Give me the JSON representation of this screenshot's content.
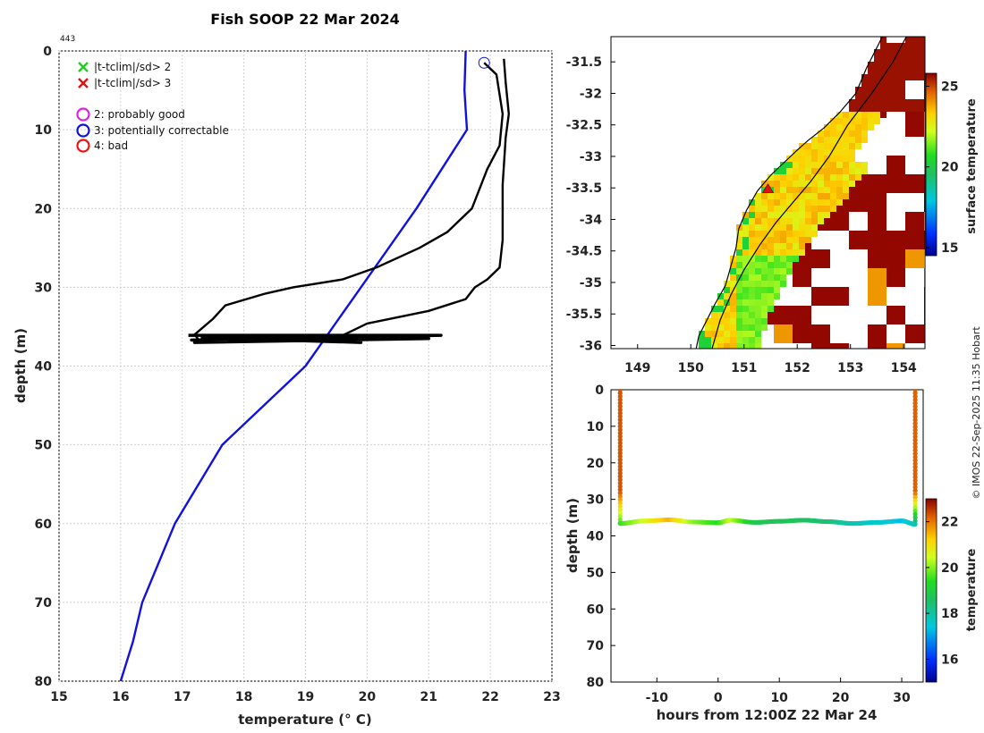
{
  "page": {
    "title": "Fish SOOP 22 Mar 2024",
    "profile_id": "443",
    "credit": "© IMOS 22-Sep-2025 11:35 Hobart"
  },
  "chart_data": [
    {
      "type": "line",
      "name": "temperature-profile",
      "xlabel": "temperature (° C)",
      "ylabel": "depth (m)",
      "xlim": [
        15,
        23
      ],
      "ylim": [
        0,
        80
      ],
      "ylim_reversed": true,
      "xticks": [
        "15",
        "16",
        "17",
        "18",
        "19",
        "20",
        "21",
        "22",
        "23"
      ],
      "yticks": [
        "0",
        "10",
        "20",
        "30",
        "40",
        "50",
        "60",
        "70",
        "80"
      ],
      "grid": true,
      "legend": [
        {
          "label": "|t-tclim|/sd> 2",
          "marker": "x",
          "color": "#22cc22"
        },
        {
          "label": "|t-tclim|/sd> 3",
          "marker": "x",
          "color": "#dd1111"
        },
        {
          "label": "2: probably good",
          "marker": "circle",
          "color": "#dd22dd"
        },
        {
          "label": "3: potentially correctable",
          "marker": "circle",
          "color": "#1111dd"
        },
        {
          "label": "4: bad",
          "marker": "circle",
          "color": "#ee1111"
        }
      ],
      "series": [
        {
          "name": "climatology",
          "color": "#1010e0",
          "points": [
            [
              21.6,
              0
            ],
            [
              21.58,
              5
            ],
            [
              21.62,
              10
            ],
            [
              20.8,
              20
            ],
            [
              19.9,
              30
            ],
            [
              19.0,
              40
            ],
            [
              17.65,
              50
            ],
            [
              16.88,
              60
            ],
            [
              16.35,
              70
            ],
            [
              16.2,
              75
            ],
            [
              16.0,
              80
            ]
          ]
        },
        {
          "name": "profile-down",
          "color": "#000000",
          "points": [
            [
              21.9,
              1.5
            ],
            [
              22.1,
              3.0
            ],
            [
              22.2,
              8
            ],
            [
              22.15,
              12
            ],
            [
              21.95,
              15
            ],
            [
              21.7,
              20
            ],
            [
              21.3,
              23
            ],
            [
              20.85,
              25
            ],
            [
              20.15,
              27.5
            ],
            [
              19.6,
              29
            ],
            [
              18.8,
              30
            ],
            [
              18.35,
              30.8
            ],
            [
              17.7,
              32.3
            ],
            [
              17.5,
              34
            ],
            [
              17.2,
              36
            ],
            [
              17.3,
              37
            ]
          ]
        },
        {
          "name": "profile-up",
          "color": "#000000",
          "points": [
            [
              19.5,
              36.5
            ],
            [
              20.0,
              34.6
            ],
            [
              21.0,
              33
            ],
            [
              21.6,
              31.5
            ],
            [
              21.75,
              30
            ],
            [
              21.95,
              29
            ],
            [
              22.15,
              27.5
            ],
            [
              22.2,
              24
            ],
            [
              22.2,
              17
            ],
            [
              22.25,
              11
            ],
            [
              22.3,
              8
            ],
            [
              22.25,
              4
            ],
            [
              22.22,
              1
            ]
          ]
        },
        {
          "name": "bottom-track",
          "color": "#000000",
          "points": [
            [
              17.1,
              36.1
            ],
            [
              21.2,
              36.1
            ],
            [
              17.15,
              36.7
            ],
            [
              21.0,
              36.5
            ],
            [
              17.2,
              37.0
            ],
            [
              20.5,
              36.3
            ],
            [
              17.4,
              36.2
            ],
            [
              19.9,
              37.0
            ],
            [
              17.3,
              36.4
            ]
          ]
        }
      ],
      "flagged": [
        {
          "label": "3: potentially correctable",
          "x": 21.9,
          "y": 1.5
        }
      ]
    },
    {
      "type": "heatmap",
      "name": "sst-map",
      "colorbar_label": "surface temperature",
      "colorbar_ticks": [
        "15",
        "20",
        "25"
      ],
      "clim": [
        14.5,
        25.8
      ],
      "xlim": [
        148.5,
        154.4
      ],
      "ylim": [
        -36.05,
        -31.1
      ],
      "xticks": [
        "149",
        "150",
        "151",
        "152",
        "153",
        "154"
      ],
      "yticks": [
        "-31.5",
        "-32",
        "-32.5",
        "-33",
        "-33.5",
        "-34",
        "-34.5",
        "-35",
        "-35.5",
        "-36"
      ],
      "coastline": [
        [
          153.6,
          -31.1
        ],
        [
          153.3,
          -31.6
        ],
        [
          153.1,
          -32.0
        ],
        [
          152.8,
          -32.3
        ],
        [
          152.5,
          -32.55
        ],
        [
          152.2,
          -32.75
        ],
        [
          152.0,
          -32.9
        ],
        [
          151.75,
          -33.1
        ],
        [
          151.5,
          -33.3
        ],
        [
          151.25,
          -33.55
        ],
        [
          151.05,
          -33.85
        ],
        [
          150.9,
          -34.15
        ],
        [
          150.85,
          -34.45
        ],
        [
          150.75,
          -34.75
        ],
        [
          150.65,
          -35.05
        ],
        [
          150.45,
          -35.35
        ],
        [
          150.3,
          -35.6
        ],
        [
          150.15,
          -35.85
        ],
        [
          150.1,
          -36.05
        ]
      ],
      "isobath": [
        [
          154.05,
          -31.1
        ],
        [
          153.8,
          -31.5
        ],
        [
          153.4,
          -32.0
        ],
        [
          152.95,
          -32.5
        ],
        [
          152.6,
          -33.0
        ],
        [
          152.25,
          -33.4
        ],
        [
          151.9,
          -33.75
        ],
        [
          151.6,
          -34.05
        ],
        [
          151.3,
          -34.4
        ],
        [
          151.0,
          -34.8
        ],
        [
          150.75,
          -35.2
        ],
        [
          150.55,
          -35.6
        ],
        [
          150.4,
          -36.05
        ]
      ],
      "location": {
        "lon": 151.45,
        "lat": -33.52
      }
    },
    {
      "type": "scatter",
      "name": "depth-time",
      "xlabel": "hours from 12:00Z 22 Mar 24",
      "ylabel": "depth (m)",
      "xlim": [
        -17.5,
        33.5
      ],
      "ylim": [
        0,
        80
      ],
      "ylim_reversed": true,
      "xticks": [
        "-10",
        "0",
        "10",
        "20",
        "30"
      ],
      "yticks": [
        "0",
        "10",
        "20",
        "30",
        "40",
        "50",
        "60",
        "70",
        "80"
      ],
      "colorbar_label": "temperature",
      "colorbar_ticks": [
        "16",
        "18",
        "20",
        "22"
      ],
      "clim": [
        15,
        23
      ],
      "descent": {
        "hours": -16,
        "depth_start": 0,
        "depth_end": 36.5
      },
      "ascent": {
        "hours": 32.2,
        "depth_start": 0,
        "depth_end": 36.8
      },
      "bottom_track": [
        [
          -16,
          36.6,
          19.5
        ],
        [
          -12,
          35.9,
          20.5
        ],
        [
          -8,
          35.6,
          21.5
        ],
        [
          -4,
          36.2,
          20.0
        ],
        [
          0,
          36.4,
          19.4
        ],
        [
          2,
          35.7,
          20.4
        ],
        [
          6,
          36.3,
          18.8
        ],
        [
          10,
          36.0,
          18.7
        ],
        [
          14,
          35.7,
          18.6
        ],
        [
          18,
          36.1,
          18.4
        ],
        [
          22,
          36.6,
          17.8
        ],
        [
          26,
          36.3,
          17.6
        ],
        [
          30,
          35.9,
          17.3
        ],
        [
          32.2,
          36.8,
          17.8
        ]
      ]
    }
  ]
}
